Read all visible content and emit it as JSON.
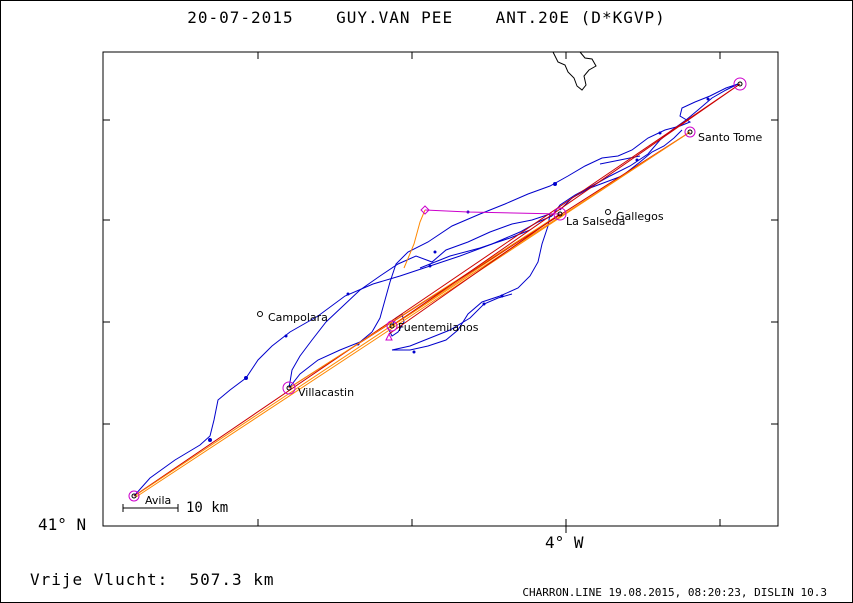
{
  "title": {
    "date": "20-07-2015",
    "pilot": "GUY.VAN PEE",
    "glider": "ANT.20E (D*KGVP)"
  },
  "axes": {
    "lat_label": "41° N",
    "lon_label": "4° W"
  },
  "scale": {
    "label": "10 km"
  },
  "places": [
    {
      "name": "Avila",
      "kind": "turnpoint"
    },
    {
      "name": "Villacastin",
      "kind": "turnpoint"
    },
    {
      "name": "Campolara",
      "kind": "town"
    },
    {
      "name": "Fuentemilanos",
      "kind": "turnpoint"
    },
    {
      "name": "La Salseda",
      "kind": "turnpoint"
    },
    {
      "name": "Gallegos",
      "kind": "town"
    },
    {
      "name": "Santo Tome",
      "kind": "turnpoint"
    }
  ],
  "footer": {
    "distance": "Vrije Vlucht:  507.3 km",
    "credit": "CHARRON.LINE 19.08.2015, 08:20:23, DISLIN 10.3"
  },
  "colors": {
    "track": "#0000cc",
    "task_red": "#cc0000",
    "task_orange": "#ff8800",
    "turnpoint": "#cc00cc",
    "coast": "#000000"
  }
}
